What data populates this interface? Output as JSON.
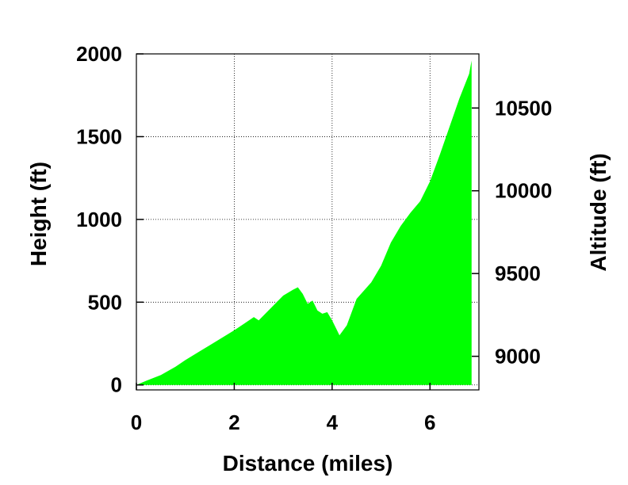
{
  "chart_data": {
    "type": "area",
    "xlabel": "Distance (miles)",
    "ylabel": "Height (ft)",
    "y2label": "Altitude (ft)",
    "xlim": [
      0,
      7
    ],
    "ylim": [
      -30,
      2000
    ],
    "y2lim": [
      8797,
      10827
    ],
    "xticks": [
      0,
      2,
      4,
      6
    ],
    "yticks": [
      0,
      500,
      1000,
      1500,
      2000
    ],
    "y2ticks": [
      9000,
      9500,
      10000,
      10500
    ],
    "grid": true,
    "fill_color": "#00ff00",
    "series": [
      {
        "x": [
          0,
          0.2,
          0.5,
          0.8,
          1.0,
          1.5,
          2.0,
          2.2,
          2.4,
          2.5,
          2.8,
          3.0,
          3.2,
          3.3,
          3.4,
          3.5,
          3.6,
          3.7,
          3.8,
          3.9,
          4.0,
          4.1,
          4.15,
          4.3,
          4.5,
          4.8,
          5.0,
          5.2,
          5.4,
          5.6,
          5.8,
          6.0,
          6.2,
          6.4,
          6.6,
          6.8,
          6.85
        ],
        "values": [
          0,
          25,
          60,
          110,
          150,
          240,
          330,
          370,
          410,
          390,
          480,
          540,
          575,
          590,
          550,
          490,
          510,
          450,
          430,
          440,
          390,
          330,
          300,
          360,
          520,
          620,
          720,
          860,
          960,
          1040,
          1110,
          1230,
          1390,
          1560,
          1730,
          1880,
          1960
        ]
      }
    ]
  }
}
